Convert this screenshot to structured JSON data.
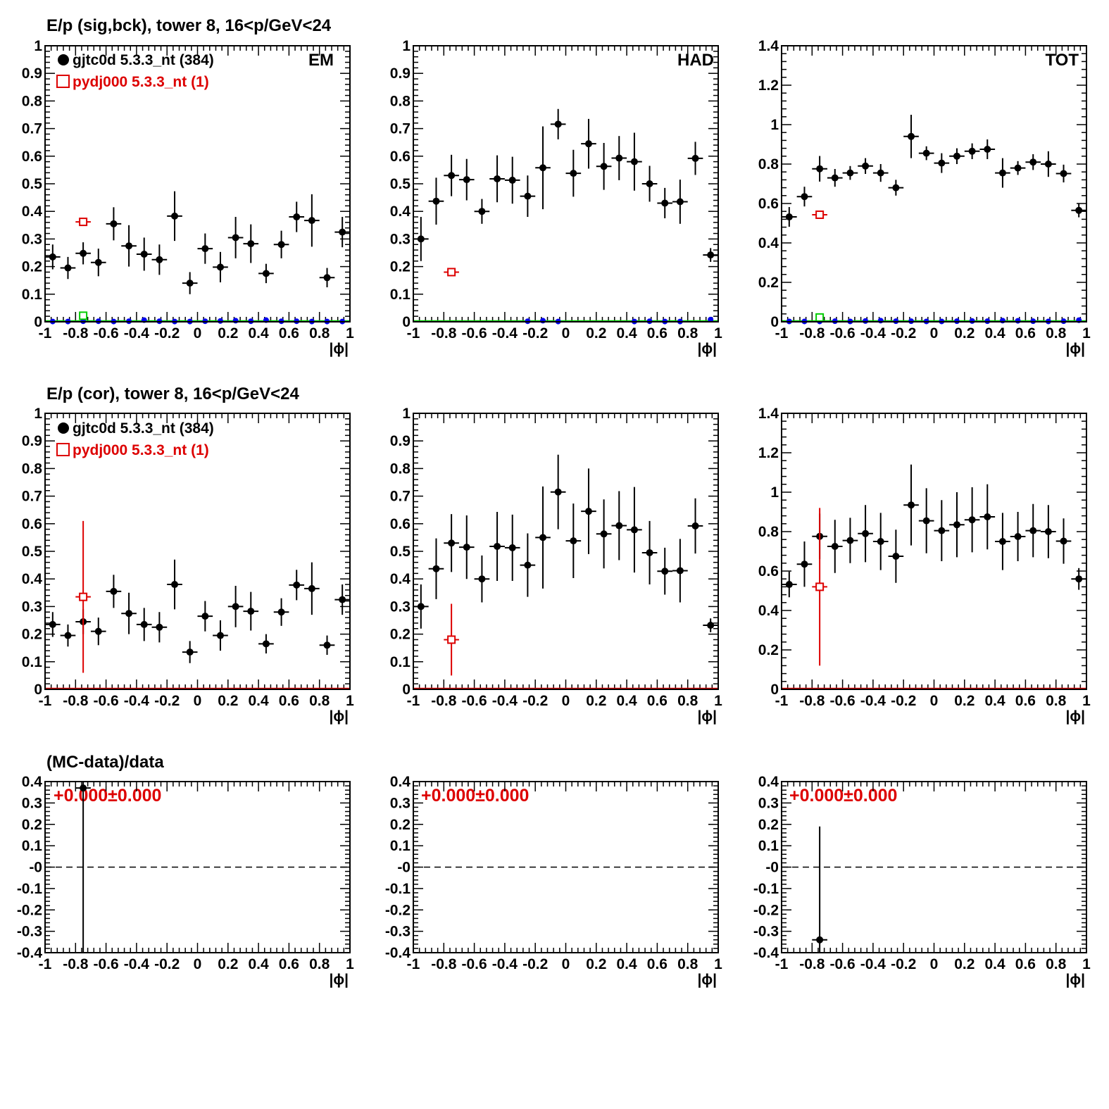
{
  "colors": {
    "data": "#000000",
    "mc": "#dd0000",
    "bck_data": "#0000ee",
    "bck_mc": "#00cc00"
  },
  "axis_title": "|ϕ|",
  "row_titles": [
    "E/p (sig,bck), tower 8, 16<p/GeV<24",
    "E/p (cor), tower 8, 16<p/GeV<24",
    "(MC-data)/data"
  ],
  "legend": {
    "data_label": "gjtc0d 5.3.3_nt (384)",
    "mc_label": "pydj000 5.3.3_nt (1)"
  },
  "panel_labels": [
    "EM",
    "HAD",
    "TOT"
  ],
  "ratio_annotation": "+0.000±0.000",
  "chart_data": [
    {
      "id": "sig-em",
      "type": "scatter",
      "title": "E/p (sig,bck), tower 8, 16<p/GeV<24",
      "label": "EM",
      "xlabel": "|ϕ|",
      "xlim": [
        -1,
        1
      ],
      "ylim": [
        0,
        1
      ],
      "x_ticks": [
        "-1",
        "-0.8",
        "-0.6",
        "-0.4",
        "-0.2",
        "0",
        "0.2",
        "0.4",
        "0.6",
        "0.8",
        "1"
      ],
      "y_ticks": [
        "0",
        "0.1",
        "0.2",
        "0.3",
        "0.4",
        "0.5",
        "0.6",
        "0.7",
        "0.8",
        "0.9",
        "1"
      ],
      "legend": true,
      "series": [
        {
          "name": "gjtc0d 5.3.3_nt (384)",
          "role": "data",
          "marker": "dot",
          "x": [
            -0.95,
            -0.85,
            -0.75,
            -0.65,
            -0.55,
            -0.45,
            -0.35,
            -0.25,
            -0.15,
            -0.05,
            0.05,
            0.15,
            0.25,
            0.35,
            0.45,
            0.55,
            0.65,
            0.75,
            0.85,
            0.95
          ],
          "y": [
            0.235,
            0.195,
            0.248,
            0.215,
            0.355,
            0.275,
            0.245,
            0.225,
            0.383,
            0.14,
            0.265,
            0.198,
            0.305,
            0.283,
            0.175,
            0.28,
            0.38,
            0.367,
            0.16,
            0.325
          ],
          "err": [
            0.045,
            0.04,
            0.04,
            0.05,
            0.06,
            0.075,
            0.06,
            0.055,
            0.09,
            0.04,
            0.055,
            0.055,
            0.075,
            0.07,
            0.035,
            0.05,
            0.055,
            0.095,
            0.035,
            0.055
          ]
        },
        {
          "name": "pydj000 5.3.3_nt (1)",
          "role": "mc",
          "marker": "square",
          "x": [
            -0.75
          ],
          "y": [
            0.362
          ],
          "err": [
            0.0
          ]
        },
        {
          "role": "bck_data",
          "marker": "dot",
          "x": [
            -0.95,
            -0.85,
            -0.75,
            -0.65,
            -0.55,
            -0.45,
            -0.35,
            -0.25,
            -0.15,
            -0.05,
            0.05,
            0.15,
            0.25,
            0.35,
            0.45,
            0.55,
            0.65,
            0.75,
            0.85,
            0.95
          ],
          "y": [
            0.001,
            0.001,
            0.002,
            0.002,
            0.001,
            0.002,
            0.006,
            0.002,
            0.001,
            0.001,
            0.002,
            0.003,
            0.004,
            0.002,
            0.006,
            0.002,
            0.002,
            0.001,
            0.001,
            0.001
          ],
          "err": [
            0,
            0,
            0,
            0,
            0,
            0,
            0,
            0,
            0,
            0,
            0,
            0,
            0,
            0,
            0,
            0,
            0,
            0,
            0,
            0
          ]
        },
        {
          "role": "bck_mc",
          "marker": "square",
          "x": [
            -0.75
          ],
          "y": [
            0.022
          ],
          "err": [
            0.0
          ]
        }
      ]
    },
    {
      "id": "sig-had",
      "type": "scatter",
      "label": "HAD",
      "xlabel": "|ϕ|",
      "xlim": [
        -1,
        1
      ],
      "ylim": [
        0,
        1
      ],
      "x_ticks": [
        "-1",
        "-0.8",
        "-0.6",
        "-0.4",
        "-0.2",
        "0",
        "0.2",
        "0.4",
        "0.6",
        "0.8",
        "1"
      ],
      "y_ticks": [
        "0",
        "0.1",
        "0.2",
        "0.3",
        "0.4",
        "0.5",
        "0.6",
        "0.7",
        "0.8",
        "0.9",
        "1"
      ],
      "series": [
        {
          "role": "data",
          "marker": "dot",
          "x": [
            -0.95,
            -0.85,
            -0.75,
            -0.65,
            -0.55,
            -0.45,
            -0.35,
            -0.25,
            -0.15,
            -0.05,
            0.05,
            0.15,
            0.25,
            0.35,
            0.45,
            0.55,
            0.65,
            0.75,
            0.85,
            0.95
          ],
          "y": [
            0.3,
            0.437,
            0.53,
            0.515,
            0.4,
            0.518,
            0.513,
            0.455,
            0.558,
            0.716,
            0.538,
            0.645,
            0.563,
            0.593,
            0.58,
            0.5,
            0.43,
            0.435,
            0.592,
            0.242
          ],
          "err": [
            0.08,
            0.085,
            0.075,
            0.075,
            0.045,
            0.085,
            0.085,
            0.075,
            0.15,
            0.055,
            0.085,
            0.09,
            0.085,
            0.08,
            0.105,
            0.065,
            0.055,
            0.08,
            0.06,
            0.025
          ]
        },
        {
          "role": "mc",
          "marker": "square",
          "x": [
            -0.75
          ],
          "y": [
            0.18
          ],
          "err": [
            0.0
          ]
        },
        {
          "role": "bck_data",
          "marker": "dot",
          "x": [
            -0.25,
            -0.15,
            -0.05,
            0.45,
            0.55,
            0.65,
            0.75,
            0.95
          ],
          "y": [
            0.002,
            0.004,
            0.001,
            0.001,
            0.002,
            0.001,
            0.001,
            0.008
          ],
          "err": [
            0,
            0,
            0,
            0,
            0,
            0,
            0,
            0
          ]
        }
      ]
    },
    {
      "id": "sig-tot",
      "type": "scatter",
      "label": "TOT",
      "xlabel": "|ϕ|",
      "xlim": [
        -1,
        1
      ],
      "ylim": [
        0,
        1.4
      ],
      "x_ticks": [
        "-1",
        "-0.8",
        "-0.6",
        "-0.4",
        "-0.2",
        "0",
        "0.2",
        "0.4",
        "0.6",
        "0.8",
        "1"
      ],
      "y_ticks": [
        "0",
        "0.2",
        "0.4",
        "0.6",
        "0.8",
        "1",
        "1.2",
        "1.4"
      ],
      "series": [
        {
          "role": "data",
          "marker": "dot",
          "x": [
            -0.95,
            -0.85,
            -0.75,
            -0.65,
            -0.55,
            -0.45,
            -0.35,
            -0.25,
            -0.15,
            -0.05,
            0.05,
            0.15,
            0.25,
            0.35,
            0.45,
            0.55,
            0.65,
            0.75,
            0.85,
            0.95
          ],
          "y": [
            0.532,
            0.635,
            0.776,
            0.73,
            0.755,
            0.79,
            0.755,
            0.68,
            0.94,
            0.855,
            0.805,
            0.84,
            0.865,
            0.875,
            0.755,
            0.78,
            0.81,
            0.8,
            0.752,
            0.565
          ],
          "err": [
            0.05,
            0.05,
            0.065,
            0.045,
            0.035,
            0.04,
            0.045,
            0.04,
            0.11,
            0.035,
            0.05,
            0.04,
            0.04,
            0.05,
            0.075,
            0.035,
            0.04,
            0.065,
            0.045,
            0.035
          ]
        },
        {
          "role": "mc",
          "marker": "square",
          "x": [
            -0.75
          ],
          "y": [
            0.543
          ],
          "err": [
            0.0
          ]
        },
        {
          "role": "bck_data",
          "marker": "dot",
          "x": [
            -0.95,
            -0.85,
            -0.75,
            -0.65,
            -0.55,
            -0.45,
            -0.35,
            -0.25,
            -0.15,
            -0.05,
            0.05,
            0.15,
            0.25,
            0.35,
            0.45,
            0.55,
            0.65,
            0.75,
            0.85,
            0.95
          ],
          "y": [
            0.002,
            0.002,
            0.002,
            0.003,
            0.002,
            0.004,
            0.006,
            0.003,
            0.003,
            0.002,
            0.002,
            0.003,
            0.004,
            0.003,
            0.006,
            0.005,
            0.003,
            0.002,
            0.003,
            0.008
          ],
          "err": [
            0,
            0,
            0,
            0,
            0,
            0,
            0,
            0,
            0,
            0,
            0,
            0,
            0,
            0,
            0,
            0,
            0,
            0,
            0,
            0
          ]
        },
        {
          "role": "bck_mc",
          "marker": "square",
          "x": [
            -0.75
          ],
          "y": [
            0.022
          ],
          "err": [
            0.0
          ]
        }
      ]
    },
    {
      "id": "cor-em",
      "type": "scatter",
      "title": "E/p (cor), tower 8, 16<p/GeV<24",
      "xlabel": "|ϕ|",
      "xlim": [
        -1,
        1
      ],
      "ylim": [
        0,
        1
      ],
      "x_ticks": [
        "-1",
        "-0.8",
        "-0.6",
        "-0.4",
        "-0.2",
        "0",
        "0.2",
        "0.4",
        "0.6",
        "0.8",
        "1"
      ],
      "y_ticks": [
        "0",
        "0.1",
        "0.2",
        "0.3",
        "0.4",
        "0.5",
        "0.6",
        "0.7",
        "0.8",
        "0.9",
        "1"
      ],
      "legend": true,
      "series": [
        {
          "name": "gjtc0d 5.3.3_nt (384)",
          "role": "data",
          "marker": "dot",
          "x": [
            -0.95,
            -0.85,
            -0.75,
            -0.65,
            -0.55,
            -0.45,
            -0.35,
            -0.25,
            -0.15,
            -0.05,
            0.05,
            0.15,
            0.25,
            0.35,
            0.45,
            0.55,
            0.65,
            0.75,
            0.85,
            0.95
          ],
          "y": [
            0.235,
            0.195,
            0.245,
            0.21,
            0.355,
            0.275,
            0.235,
            0.225,
            0.38,
            0.135,
            0.265,
            0.195,
            0.3,
            0.283,
            0.165,
            0.28,
            0.378,
            0.365,
            0.16,
            0.325
          ],
          "err": [
            0.045,
            0.04,
            0.045,
            0.05,
            0.06,
            0.075,
            0.06,
            0.055,
            0.09,
            0.04,
            0.055,
            0.055,
            0.075,
            0.07,
            0.035,
            0.05,
            0.055,
            0.095,
            0.035,
            0.055
          ]
        },
        {
          "name": "pydj000 5.3.3_nt (1)",
          "role": "mc",
          "marker": "square",
          "x": [
            -0.75
          ],
          "y": [
            0.335
          ],
          "err": [
            0.275
          ]
        }
      ]
    },
    {
      "id": "cor-had",
      "type": "scatter",
      "xlabel": "|ϕ|",
      "xlim": [
        -1,
        1
      ],
      "ylim": [
        0,
        1
      ],
      "x_ticks": [
        "-1",
        "-0.8",
        "-0.6",
        "-0.4",
        "-0.2",
        "0",
        "0.2",
        "0.4",
        "0.6",
        "0.8",
        "1"
      ],
      "y_ticks": [
        "0",
        "0.1",
        "0.2",
        "0.3",
        "0.4",
        "0.5",
        "0.6",
        "0.7",
        "0.8",
        "0.9",
        "1"
      ],
      "series": [
        {
          "role": "data",
          "marker": "dot",
          "x": [
            -0.95,
            -0.85,
            -0.75,
            -0.65,
            -0.55,
            -0.45,
            -0.35,
            -0.25,
            -0.15,
            -0.05,
            0.05,
            0.15,
            0.25,
            0.35,
            0.45,
            0.55,
            0.65,
            0.75,
            0.85,
            0.95
          ],
          "y": [
            0.3,
            0.437,
            0.53,
            0.515,
            0.4,
            0.518,
            0.513,
            0.45,
            0.55,
            0.715,
            0.538,
            0.645,
            0.563,
            0.593,
            0.578,
            0.495,
            0.428,
            0.43,
            0.592,
            0.232
          ],
          "err": [
            0.08,
            0.11,
            0.105,
            0.115,
            0.085,
            0.125,
            0.12,
            0.115,
            0.185,
            0.135,
            0.135,
            0.155,
            0.125,
            0.125,
            0.155,
            0.115,
            0.085,
            0.115,
            0.1,
            0.025
          ]
        },
        {
          "role": "mc",
          "marker": "square",
          "x": [
            -0.75
          ],
          "y": [
            0.18
          ],
          "err": [
            0.13
          ]
        }
      ]
    },
    {
      "id": "cor-tot",
      "type": "scatter",
      "xlabel": "|ϕ|",
      "xlim": [
        -1,
        1
      ],
      "ylim": [
        0,
        1.4
      ],
      "x_ticks": [
        "-1",
        "-0.8",
        "-0.6",
        "-0.4",
        "-0.2",
        "0",
        "0.2",
        "0.4",
        "0.6",
        "0.8",
        "1"
      ],
      "y_ticks": [
        "0",
        "0.2",
        "0.4",
        "0.6",
        "0.8",
        "1",
        "1.2",
        "1.4"
      ],
      "series": [
        {
          "role": "data",
          "marker": "dot",
          "x": [
            -0.95,
            -0.85,
            -0.75,
            -0.65,
            -0.55,
            -0.45,
            -0.35,
            -0.25,
            -0.15,
            -0.05,
            0.05,
            0.15,
            0.25,
            0.35,
            0.45,
            0.55,
            0.65,
            0.75,
            0.85,
            0.95
          ],
          "y": [
            0.532,
            0.635,
            0.776,
            0.725,
            0.755,
            0.79,
            0.75,
            0.675,
            0.935,
            0.855,
            0.805,
            0.835,
            0.86,
            0.875,
            0.75,
            0.775,
            0.805,
            0.8,
            0.752,
            0.56
          ],
          "err": [
            0.065,
            0.115,
            0.115,
            0.135,
            0.115,
            0.145,
            0.145,
            0.135,
            0.205,
            0.165,
            0.155,
            0.165,
            0.165,
            0.165,
            0.145,
            0.125,
            0.135,
            0.135,
            0.115,
            0.055
          ]
        },
        {
          "role": "mc",
          "marker": "square",
          "x": [
            -0.75
          ],
          "y": [
            0.52
          ],
          "err": [
            0.4
          ]
        }
      ]
    },
    {
      "id": "ratio-em",
      "type": "scatter",
      "title": "(MC-data)/data",
      "xlabel": "|ϕ|",
      "xlim": [
        -1,
        1
      ],
      "ylim": [
        -0.4,
        0.4
      ],
      "x_ticks": [
        "-1",
        "-0.8",
        "-0.6",
        "-0.4",
        "-0.2",
        "0",
        "0.2",
        "0.4",
        "0.6",
        "0.8",
        "1"
      ],
      "y_ticks": [
        "-0.4",
        "-0.3",
        "-0.2",
        "-0.1",
        "-0",
        "0.1",
        "0.2",
        "0.3",
        "0.4"
      ],
      "reference_line": 0,
      "series": [
        {
          "role": "data",
          "marker": "dot",
          "x": [
            -0.75
          ],
          "y": [
            0.37
          ],
          "err": [
            1.1
          ]
        }
      ]
    },
    {
      "id": "ratio-had",
      "type": "scatter",
      "xlabel": "|ϕ|",
      "xlim": [
        -1,
        1
      ],
      "ylim": [
        -0.4,
        0.4
      ],
      "x_ticks": [
        "-1",
        "-0.8",
        "-0.6",
        "-0.4",
        "-0.2",
        "0",
        "0.2",
        "0.4",
        "0.6",
        "0.8",
        "1"
      ],
      "y_ticks": [
        "-0.4",
        "-0.3",
        "-0.2",
        "-0.1",
        "-0",
        "0.1",
        "0.2",
        "0.3",
        "0.4"
      ],
      "reference_line": 0,
      "series": []
    },
    {
      "id": "ratio-tot",
      "type": "scatter",
      "xlabel": "|ϕ|",
      "xlim": [
        -1,
        1
      ],
      "ylim": [
        -0.4,
        0.4
      ],
      "x_ticks": [
        "-1",
        "-0.8",
        "-0.6",
        "-0.4",
        "-0.2",
        "0",
        "0.2",
        "0.4",
        "0.6",
        "0.8",
        "1"
      ],
      "y_ticks": [
        "-0.4",
        "-0.3",
        "-0.2",
        "-0.1",
        "-0",
        "0.1",
        "0.2",
        "0.3",
        "0.4"
      ],
      "reference_line": 0,
      "series": [
        {
          "role": "data",
          "marker": "dot",
          "x": [
            -0.75
          ],
          "y": [
            -0.34
          ],
          "err": [
            0.53
          ]
        }
      ]
    }
  ]
}
